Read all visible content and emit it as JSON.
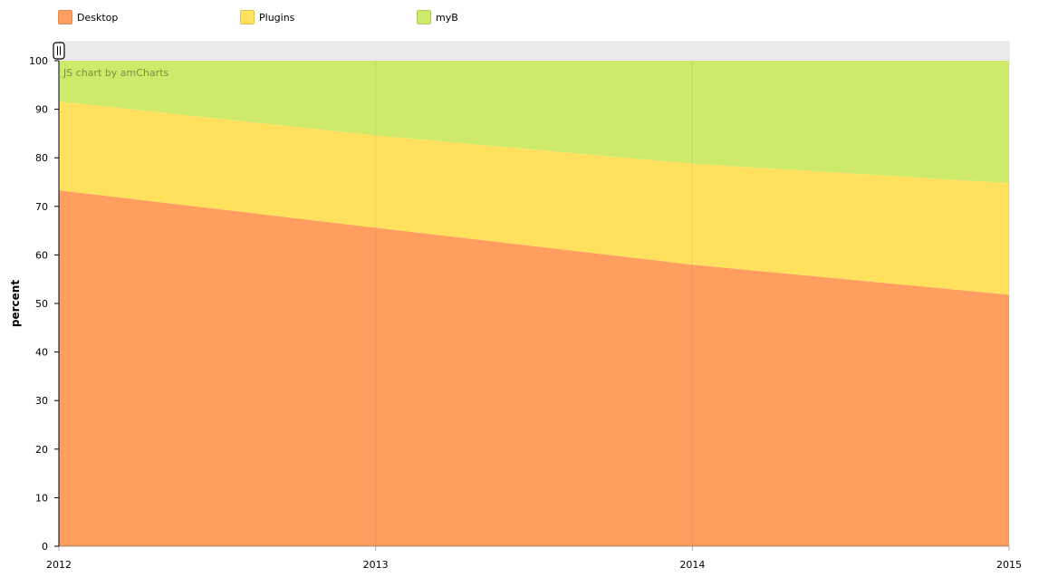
{
  "chart_data": {
    "type": "area",
    "stacking": "100%",
    "x": [
      "2012",
      "2013",
      "2014",
      "2015"
    ],
    "series": [
      {
        "name": "Desktop",
        "color": "#FF9E5E",
        "values": [
          73.3,
          65.6,
          58.0,
          51.8
        ]
      },
      {
        "name": "Plugins",
        "color": "#FFE15E",
        "values": [
          18.3,
          19.0,
          20.8,
          23.0
        ]
      },
      {
        "name": "myB",
        "color": "#CDEA6B",
        "values": [
          8.4,
          15.4,
          21.2,
          25.2
        ]
      }
    ],
    "ylabel": "percent",
    "xlabel": "",
    "ylim": [
      0,
      100
    ],
    "yticks": [
      0,
      10,
      20,
      30,
      40,
      50,
      60,
      70,
      80,
      90,
      100
    ],
    "grid": true,
    "legend_position": "top-left",
    "credit": "JS chart by amCharts",
    "scrollbar_handle_icon": "grip-icon"
  }
}
